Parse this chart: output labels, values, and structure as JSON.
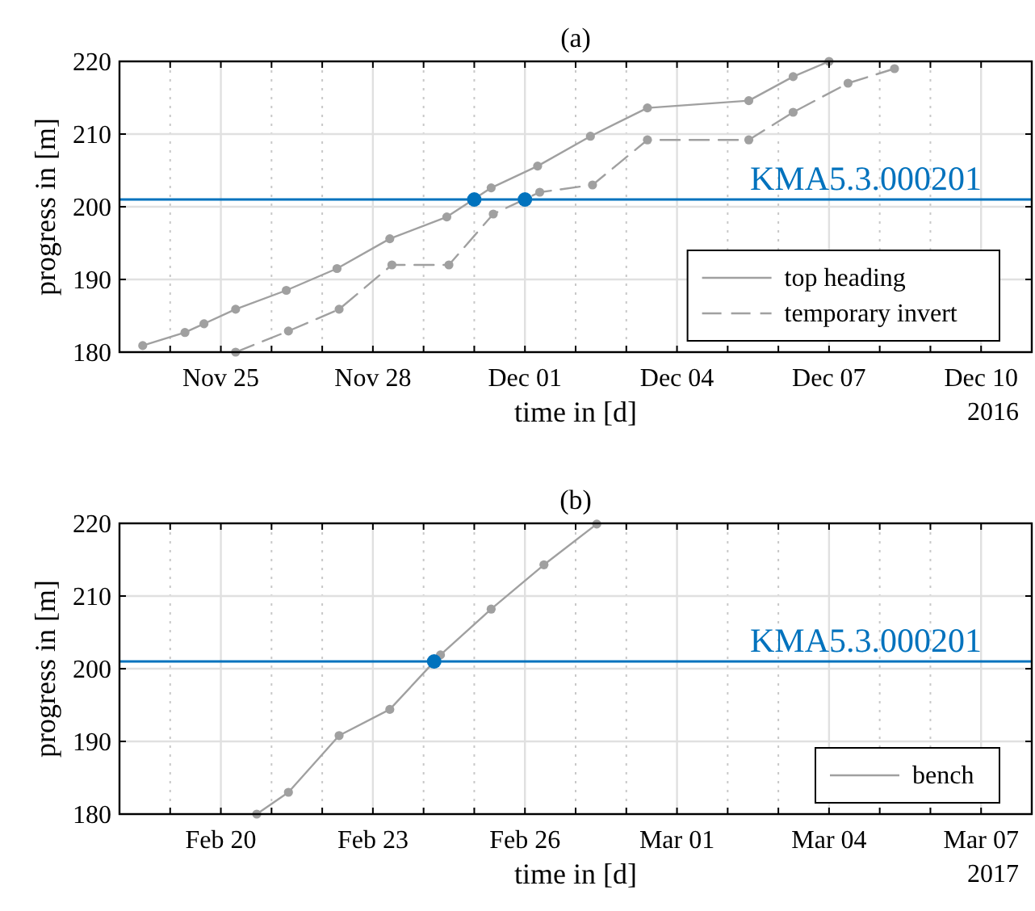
{
  "chart_data": [
    {
      "type": "line",
      "title": "(a)",
      "xlabel": "time in [d]",
      "ylabel": "progress in [m]",
      "xlim": [
        "2016-11-23",
        "2016-12-11"
      ],
      "xticks": [
        {
          "value": "2016-11-24",
          "label": null
        },
        {
          "value": "2016-11-25",
          "label": "Nov 25"
        },
        {
          "value": "2016-11-26",
          "label": null
        },
        {
          "value": "2016-11-27",
          "label": null
        },
        {
          "value": "2016-11-28",
          "label": "Nov 28"
        },
        {
          "value": "2016-11-29",
          "label": null
        },
        {
          "value": "2016-11-30",
          "label": null
        },
        {
          "value": "2016-12-01",
          "label": "Dec 01"
        },
        {
          "value": "2016-12-02",
          "label": null
        },
        {
          "value": "2016-12-03",
          "label": null
        },
        {
          "value": "2016-12-04",
          "label": "Dec 04"
        },
        {
          "value": "2016-12-05",
          "label": null
        },
        {
          "value": "2016-12-06",
          "label": null
        },
        {
          "value": "2016-12-07",
          "label": "Dec 07"
        },
        {
          "value": "2016-12-08",
          "label": null
        },
        {
          "value": "2016-12-09",
          "label": null
        },
        {
          "value": "2016-12-10",
          "label": "Dec 10"
        }
      ],
      "ylim": [
        180,
        220
      ],
      "yticks": [
        180,
        190,
        200,
        210,
        220
      ],
      "grid": true,
      "legend": "bottom right",
      "annotations": [
        "2016"
      ],
      "ref_lines": [
        {
          "axis": "y",
          "value": 201,
          "label": "KMA5.3.000201",
          "color": "#0072bd"
        }
      ],
      "series": [
        {
          "name": "top heading",
          "color": "#a0a0a0",
          "line_style": "solid",
          "marker": "circle",
          "x": [
            "2016-11-23T11:00",
            "2016-11-24T07:00",
            "2016-11-24T16:00",
            "2016-11-25T07:00",
            "2016-11-26T07:00",
            "2016-11-27T07:00",
            "2016-11-28T08:00",
            "2016-11-29T11:00",
            "2016-11-30T08:00",
            "2016-12-01T06:00",
            "2016-12-02T07:00",
            "2016-12-03T10:00",
            "2016-12-05T10:00",
            "2016-12-06T07:00",
            "2016-12-07T00:00"
          ],
          "values": [
            180.9,
            182.7,
            183.9,
            185.9,
            188.5,
            191.5,
            195.6,
            198.6,
            202.6,
            205.6,
            209.7,
            213.6,
            214.6,
            217.9,
            220
          ]
        },
        {
          "name": "temporary invert",
          "color": "#a0a0a0",
          "line_style": "dashed",
          "marker": "circle",
          "x": [
            "2016-11-25T07:00",
            "2016-11-26T08:00",
            "2016-11-27T08:00",
            "2016-11-28T09:00",
            "2016-11-29T12:00",
            "2016-11-30T09:00",
            "2016-12-01T07:00",
            "2016-12-02T08:00",
            "2016-12-03T10:00",
            "2016-12-05T10:00",
            "2016-12-06T07:00",
            "2016-12-07T09:00",
            "2016-12-08T07:00"
          ],
          "values": [
            180,
            182.9,
            185.9,
            192,
            192,
            199,
            202,
            203,
            209.2,
            209.2,
            213,
            217,
            219
          ]
        },
        {
          "type": "scatter",
          "color": "#0072bd",
          "marker": "circle",
          "x": [
            "2016-11-30T00:00",
            "2016-12-01T00:00"
          ],
          "values": [
            201,
            201
          ]
        }
      ]
    },
    {
      "type": "line",
      "title": "(b)",
      "xlabel": "time in [d]",
      "ylabel": "progress in [m]",
      "xlim": [
        "2017-02-18",
        "2017-03-08"
      ],
      "xticks": [
        {
          "value": "2017-02-19",
          "label": null
        },
        {
          "value": "2017-02-20",
          "label": "Feb 20"
        },
        {
          "value": "2017-02-21",
          "label": null
        },
        {
          "value": "2017-02-22",
          "label": null
        },
        {
          "value": "2017-02-23",
          "label": "Feb 23"
        },
        {
          "value": "2017-02-24",
          "label": null
        },
        {
          "value": "2017-02-25",
          "label": null
        },
        {
          "value": "2017-02-26",
          "label": "Feb 26"
        },
        {
          "value": "2017-02-27",
          "label": null
        },
        {
          "value": "2017-02-28",
          "label": null
        },
        {
          "value": "2017-03-01",
          "label": "Mar 01"
        },
        {
          "value": "2017-03-02",
          "label": null
        },
        {
          "value": "2017-03-03",
          "label": null
        },
        {
          "value": "2017-03-04",
          "label": "Mar 04"
        },
        {
          "value": "2017-03-05",
          "label": null
        },
        {
          "value": "2017-03-06",
          "label": null
        },
        {
          "value": "2017-03-07",
          "label": "Mar 07"
        }
      ],
      "ylim": [
        180,
        220
      ],
      "yticks": [
        180,
        190,
        200,
        210,
        220
      ],
      "grid": true,
      "legend": "bottom right",
      "annotations": [
        "2017"
      ],
      "ref_lines": [
        {
          "axis": "y",
          "value": 201,
          "label": "KMA5.3.000201",
          "color": "#0072bd"
        }
      ],
      "series": [
        {
          "name": "bench",
          "color": "#a0a0a0",
          "line_style": "solid",
          "marker": "circle",
          "x": [
            "2017-02-20T17:00",
            "2017-02-21T08:00",
            "2017-02-22T08:00",
            "2017-02-23T08:00",
            "2017-02-24T08:00",
            "2017-02-25T08:00",
            "2017-02-26T09:00",
            "2017-02-27T10:00"
          ],
          "values": [
            180,
            183,
            190.8,
            194.4,
            201.9,
            208.2,
            214.3,
            219.9
          ]
        },
        {
          "type": "scatter",
          "color": "#0072bd",
          "marker": "circle",
          "x": [
            "2017-02-24T05:00"
          ],
          "values": [
            201
          ]
        }
      ]
    }
  ]
}
